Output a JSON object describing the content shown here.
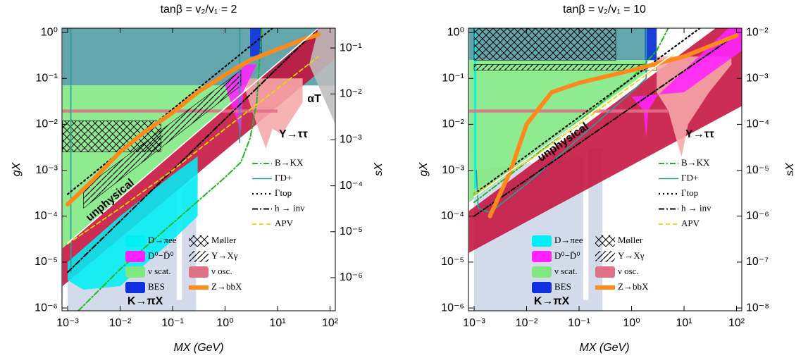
{
  "chart_data": [
    {
      "type": "line",
      "title": "tanβ = v₂/v₁ = 2",
      "xlabel": "MX (GeV)",
      "ylabel": "gX",
      "y2label": "sX",
      "xscale": "log",
      "yscale": "log",
      "xlim": [
        0.00078,
        126
      ],
      "ylim": [
        8.7e-07,
        1.24
      ],
      "y2lim": [
        1.9e-07,
        0.27
      ],
      "xticks": [
        {
          "value": 0.001,
          "label": "10⁻³"
        },
        {
          "value": 0.01,
          "label": "10⁻²"
        },
        {
          "value": 0.1,
          "label": "10⁻¹"
        },
        {
          "value": 1,
          "label": "10⁰"
        },
        {
          "value": 10,
          "label": "10¹"
        },
        {
          "value": 100,
          "label": "10²"
        }
      ],
      "yticks": [
        {
          "value": 1e-06,
          "label": "10⁻⁶"
        },
        {
          "value": 1e-05,
          "label": "10⁻⁵"
        },
        {
          "value": 0.0001,
          "label": "10⁻⁴"
        },
        {
          "value": 0.001,
          "label": "10⁻³"
        },
        {
          "value": 0.01,
          "label": "10⁻²"
        },
        {
          "value": 0.1,
          "label": "10⁻¹"
        },
        {
          "value": 1,
          "label": "10⁰"
        }
      ],
      "y2ticks": [
        {
          "value": 1e-06,
          "label": "10⁻⁶"
        },
        {
          "value": 1e-05,
          "label": "10⁻⁵"
        },
        {
          "value": 0.0001,
          "label": "10⁻⁴"
        },
        {
          "value": 0.001,
          "label": "10⁻³"
        },
        {
          "value": 0.01,
          "label": "10⁻²"
        },
        {
          "value": 0.1,
          "label": "10⁻¹"
        }
      ],
      "series": [
        {
          "name": "B→KX",
          "color": "#22b822",
          "style": "dashdot",
          "x": [
            0.0016,
            0.01,
            0.1,
            1,
            2,
            3,
            4,
            5
          ],
          "values": [
            8.7e-07,
            7e-06,
            7e-05,
            0.0007,
            0.0015,
            0.005,
            0.03,
            1.24
          ]
        },
        {
          "name": "ΓD+",
          "color": "#2a9d9d",
          "style": "solid",
          "x": [
            0.00115,
            0.00115,
            0.00115,
            1.9,
            1.9
          ],
          "values": [
            6e-06,
            1.24,
            null,
            0.004,
            1.24
          ]
        },
        {
          "name": "Γtop",
          "color": "#000000",
          "style": "dotted",
          "x": [
            0.001,
            8
          ],
          "values": [
            0.0003,
            1.24
          ]
        },
        {
          "name": "h → inv",
          "color": "#000000",
          "style": "dashdot",
          "x": [
            0.001,
            60
          ],
          "values": [
            6e-06,
            1.24
          ]
        },
        {
          "name": "APV",
          "color": "#e8d800",
          "style": "dashed",
          "x": [
            0.001,
            0.01,
            0.1,
            1,
            10,
            60
          ],
          "values": [
            2.5e-05,
            0.00015,
            0.001,
            0.008,
            0.06,
            0.3
          ]
        },
        {
          "name": "D→πee",
          "color": "#00eef5",
          "style": "fill",
          "x": [
            0.001,
            0.001,
            0.01,
            0.1,
            0.3,
            0.3,
            0.1,
            0.01,
            0.002
          ],
          "values": [
            4e-06,
            1e-05,
            0.0001,
            0.0008,
            0.002,
            0.0001,
            3e-05,
            3e-06,
            2.5e-06
          ]
        },
        {
          "name": "Møller",
          "color": "#000000",
          "style": "hatch-cross",
          "x": [
            0.0008,
            0.06,
            0.06,
            0.0008
          ],
          "values": [
            0.0025,
            0.0025,
            0.012,
            0.012
          ]
        },
        {
          "name": "D⁰−D̄⁰",
          "color": "#ff22ff",
          "style": "fill",
          "x": [
            1,
            2,
            2.2,
            4,
            2.5
          ],
          "values": [
            0.07,
            0.007,
            0.05,
            0.2,
            0.2
          ]
        },
        {
          "name": "Υ→Xγ",
          "color": "#000000",
          "style": "hatch-diag",
          "x": [
            0.002,
            2,
            2,
            0.002
          ],
          "values": [
            0.00015,
            0.07,
            0.15,
            0.0004
          ]
        },
        {
          "name": "ν scat.",
          "color": "#80e880",
          "style": "fill",
          "x": [
            0.0008,
            0.0008,
            2,
            2
          ],
          "values": [
            2e-05,
            0.07,
            0.07,
            0.047
          ]
        },
        {
          "name": "ν osc.",
          "color": "#e07088",
          "style": "fill",
          "x": [
            0.0008,
            10,
            10,
            0.0008
          ],
          "values": [
            0.018,
            0.018,
            0.021,
            0.021
          ]
        },
        {
          "name": "BES",
          "color": "#1030e0",
          "style": "fill",
          "x": [
            3,
            5,
            5,
            3
          ],
          "values": [
            0.3,
            0.3,
            1.24,
            1.24
          ]
        },
        {
          "name": "Z→bbX",
          "color": "#ff8a1c",
          "style": "thick",
          "x": [
            0.001,
            0.003,
            0.01,
            0.03,
            0.1,
            0.3,
            1,
            3,
            10,
            30,
            60
          ],
          "values": [
            0.00018,
            0.0006,
            0.0025,
            0.007,
            0.018,
            0.05,
            0.12,
            0.25,
            0.43,
            0.7,
            0.9
          ]
        },
        {
          "color": "#c4103c",
          "style": "fill",
          "x": [
            0.0008,
            0.0008,
            60,
            126,
            126
          ],
          "values": [
            3e-06,
            2e-05,
            1.24,
            1.24,
            0.27
          ]
        },
        {
          "color": "#4d9aa2",
          "style": "fill",
          "x": [
            0.0008,
            126,
            126,
            0.0008
          ],
          "values": [
            0.07,
            0.07,
            1.24,
            1.24
          ]
        },
        {
          "color": "#cdd6e8",
          "style": "fill",
          "x": [
            0.001,
            0.001,
            0.12,
            0.12,
            0.15,
            0.15,
            0.28,
            0.28
          ],
          "values": [
            8.7e-07,
            4e-06,
            0.00035,
            1.5e-06,
            1.5e-06,
            0.0004,
            0.0007,
            8.7e-07
          ]
        },
        {
          "color": "#f6a8a8",
          "style": "fill",
          "x": [
            2.5,
            4,
            6,
            8,
            12,
            30,
            30,
            2.5
          ],
          "values": [
            0.05,
            0.01,
            0.003,
            0.008,
            0.006,
            0.03,
            0.1,
            0.1
          ]
        },
        {
          "color": "#ffffff",
          "style": "solid",
          "x": [
            0.001,
            60
          ],
          "values": [
            2.6e-05,
            1.24
          ]
        },
        {
          "color": "#bdbdbd",
          "style": "fill",
          "x": [
            40,
            126,
            126,
            60
          ],
          "values": [
            0.2,
            0.01,
            1.24,
            1.24
          ]
        }
      ],
      "annotations": [
        {
          "text": "unphysical",
          "color": "#ffffff"
        },
        {
          "text": "K→πX",
          "color": "#000000"
        },
        {
          "text": "Υ→ττ",
          "color": "#e01010"
        },
        {
          "text": "αT",
          "color": "#8a8a8a"
        }
      ]
    },
    {
      "type": "line",
      "title": "tanβ = v₂/v₁ = 10",
      "xlabel": "MX (GeV)",
      "ylabel": "gX",
      "y2label": "sX",
      "xscale": "log",
      "yscale": "log",
      "xlim": [
        0.00078,
        126
      ],
      "ylim": [
        8.7e-07,
        1.24
      ],
      "y2lim": [
        8.7e-09,
        0.0124
      ],
      "xticks": [
        {
          "value": 0.001,
          "label": "10⁻³"
        },
        {
          "value": 0.01,
          "label": "10⁻²"
        },
        {
          "value": 0.1,
          "label": "10⁻¹"
        },
        {
          "value": 1,
          "label": "10⁰"
        },
        {
          "value": 10,
          "label": "10¹"
        },
        {
          "value": 100,
          "label": "10²"
        }
      ],
      "yticks": [
        {
          "value": 1e-06,
          "label": "10⁻⁶"
        },
        {
          "value": 1e-05,
          "label": "10⁻⁵"
        },
        {
          "value": 0.0001,
          "label": "10⁻⁴"
        },
        {
          "value": 0.001,
          "label": "10⁻³"
        },
        {
          "value": 0.01,
          "label": "10⁻²"
        },
        {
          "value": 0.1,
          "label": "10⁻¹"
        },
        {
          "value": 1,
          "label": "10⁰"
        }
      ],
      "y2ticks": [
        {
          "value": 1e-08,
          "label": "10⁻⁸"
        },
        {
          "value": 1e-07,
          "label": "10⁻⁷"
        },
        {
          "value": 1e-06,
          "label": "10⁻⁶"
        },
        {
          "value": 1e-05,
          "label": "10⁻⁵"
        },
        {
          "value": 0.0001,
          "label": "10⁻⁴"
        },
        {
          "value": 0.001,
          "label": "10⁻³"
        },
        {
          "value": 0.01,
          "label": "10⁻²"
        }
      ],
      "series": [
        {
          "name": "B→KX",
          "color": "#22b822",
          "style": "dashdot",
          "x": [
            0.001,
            0.01,
            0.1,
            1,
            3,
            5
          ],
          "values": [
            0.0002,
            0.0015,
            0.012,
            0.1,
            0.4,
            1.24
          ]
        },
        {
          "name": "ΓD+",
          "color": "#2a9d9d",
          "style": "solid",
          "x": [
            0.0011,
            0.0012,
            0.002,
            0.01,
            0.1,
            1,
            1.9,
            1.9
          ],
          "values": [
            0.001,
            0.00015,
            0.00012,
            0.0005,
            0.005,
            0.05,
            0.1,
            1.24
          ]
        },
        {
          "name": "Γtop",
          "color": "#000000",
          "style": "dotted",
          "x": [
            0.001,
            20
          ],
          "values": [
            0.0003,
            1.24
          ]
        },
        {
          "name": "h → inv",
          "color": "#000000",
          "style": "dashdot",
          "x": [
            0.001,
            100
          ],
          "values": [
            0.0001,
            0.9
          ]
        },
        {
          "name": "APV",
          "color": "#e8d800",
          "style": "dashed",
          "x": [
            0.001,
            0.01,
            0.1,
            1,
            10
          ],
          "values": [
            0.0003,
            0.0015,
            0.01,
            0.07,
            0.5
          ]
        },
        {
          "name": "D→πee",
          "color": "#00eef5",
          "style": "fill",
          "x": [
            0.001,
            0.0011,
            0.0011,
            0.001
          ],
          "values": [
            0.0004,
            0.0004,
            1.24,
            1.24
          ]
        },
        {
          "name": "Møller",
          "color": "#000000",
          "style": "hatch-cross",
          "x": [
            0.001,
            0.5,
            0.5,
            0.001
          ],
          "values": [
            0.25,
            0.25,
            1.24,
            1.24
          ]
        },
        {
          "name": "D⁰−D̄⁰",
          "color": "#ff22ff",
          "style": "fill",
          "x": [
            1,
            1.7,
            1.9,
            2.1,
            3,
            70,
            126,
            126,
            10
          ],
          "values": [
            0.04,
            0.02,
            0.005,
            0.02,
            0.04,
            1.24,
            1.24,
            0.4,
            0.05
          ]
        },
        {
          "name": "Υ→Xγ",
          "color": "#000000",
          "style": "hatch-diag",
          "x": [
            0.001,
            3,
            3,
            0.001
          ],
          "values": [
            0.15,
            0.15,
            0.2,
            0.2
          ]
        },
        {
          "name": "ν scat.",
          "color": "#80e880",
          "style": "fill",
          "x": [
            0.0008,
            0.0008,
            2,
            2
          ],
          "values": [
            0.0002,
            0.25,
            0.25,
            0.13
          ]
        },
        {
          "name": "ν osc.",
          "color": "#e07088",
          "style": "fill",
          "x": [
            0.0008,
            5,
            5,
            0.0008
          ],
          "values": [
            0.018,
            0.018,
            0.021,
            0.021
          ]
        },
        {
          "name": "BES",
          "color": "#1030e0",
          "style": "fill",
          "x": [
            1.8,
            3,
            3,
            1.8
          ],
          "values": [
            0.25,
            0.25,
            1.24,
            1.24
          ]
        },
        {
          "name": "Z→bbX",
          "color": "#ff8a1c",
          "style": "thick",
          "x": [
            0.002,
            0.005,
            0.01,
            0.03,
            0.1,
            1,
            10,
            100
          ],
          "values": [
            0.0001,
            0.001,
            0.01,
            0.05,
            0.08,
            0.15,
            0.3,
            0.86
          ]
        },
        {
          "color": "#c4103c",
          "style": "fill",
          "x": [
            0.0008,
            0.0008,
            40,
            126,
            126
          ],
          "values": [
            1.6e-05,
            0.00013,
            1.24,
            1.24,
            0.025
          ]
        },
        {
          "color": "#4d9aa2",
          "style": "fill",
          "x": [
            0.0008,
            3,
            3,
            0.0008
          ],
          "values": [
            0.25,
            0.25,
            1.24,
            1.24
          ]
        },
        {
          "color": "#cdd6e8",
          "style": "fill",
          "x": [
            0.001,
            0.001,
            0.12,
            0.12,
            0.15,
            0.15,
            0.28,
            0.28
          ],
          "values": [
            8.7e-07,
            0.001,
            0.002,
            1.5e-06,
            1.5e-06,
            0.003,
            0.003,
            8.7e-07
          ]
        },
        {
          "color": "#f6a8a8",
          "style": "fill",
          "x": [
            3,
            5,
            7,
            9,
            12,
            30,
            80,
            80,
            3
          ],
          "values": [
            0.05,
            0.02,
            0.005,
            0.002,
            0.01,
            0.05,
            0.2,
            0.3,
            0.3
          ]
        },
        {
          "color": "#ffffff",
          "style": "solid",
          "x": [
            0.001,
            30
          ],
          "values": [
            0.00026,
            1.24
          ]
        }
      ],
      "annotations": [
        {
          "text": "unphysical",
          "color": "#ffffff"
        },
        {
          "text": "K→πX",
          "color": "#000000"
        },
        {
          "text": "Υ→ττ",
          "color": "#e01010"
        }
      ]
    }
  ]
}
